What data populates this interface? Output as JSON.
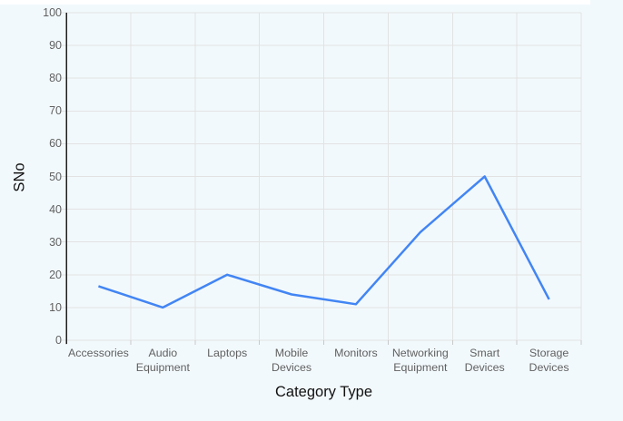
{
  "chart_data": {
    "type": "line",
    "title": "",
    "xlabel": "Category Type",
    "ylabel": "SNo",
    "categories": [
      "Accessories",
      "Audio Equipment",
      "Laptops",
      "Mobile Devices",
      "Monitors",
      "Networking Equipment",
      "Smart Devices",
      "Storage Devices"
    ],
    "values": [
      16.5,
      10,
      20,
      14,
      11,
      33,
      50,
      12.5
    ],
    "ylim": [
      0,
      100
    ],
    "ytick_interval": 10,
    "ytick_labels": [
      "0",
      "10",
      "20",
      "30",
      "40",
      "50",
      "60",
      "70",
      "80",
      "90",
      "100"
    ],
    "grid": true,
    "legend": "none",
    "line_color": "#4285f4"
  },
  "colors": {
    "background": "#f2f9fc",
    "top_strip": "#ffffff",
    "gridline": "#e2e2e2",
    "axis_line": "#1f1f1f",
    "tick_label": "#616161",
    "axis_title": "#111111",
    "line": "#4285f4"
  }
}
